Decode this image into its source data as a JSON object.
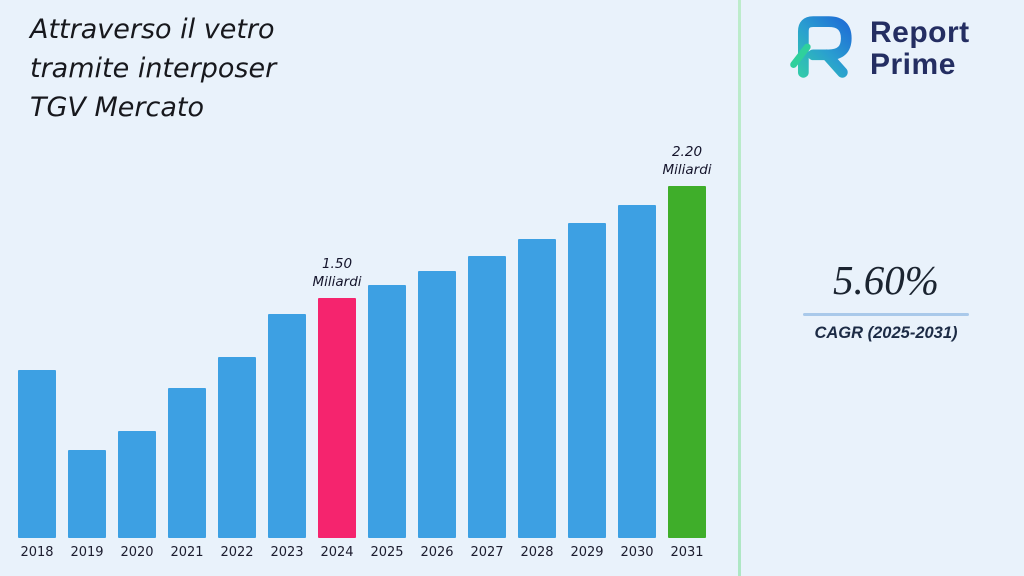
{
  "page": {
    "background_color": "#e9f2fb",
    "divider_color": "#b9ecca"
  },
  "title": {
    "lines": [
      "Attraverso il vetro",
      "tramite interposer",
      "TGV Mercato"
    ]
  },
  "brand": {
    "line1": "Report",
    "line2": "Prime",
    "icon": "report-prime-logo-mark",
    "text_color": "#242e62",
    "gradient_start": "#35d89f",
    "gradient_end": "#1e6bd6"
  },
  "stats": {
    "value": "5.60%",
    "label": "CAGR (2025-2031)",
    "underline_color": "#a9c9ea"
  },
  "chart_data": {
    "type": "bar",
    "title": "Attraverso il vetro tramite interposer TGV Mercato",
    "unit": "Miliardi",
    "categories": [
      "2018",
      "2019",
      "2020",
      "2021",
      "2022",
      "2023",
      "2024",
      "2025",
      "2026",
      "2027",
      "2028",
      "2029",
      "2030",
      "2031"
    ],
    "values": [
      1.05,
      0.55,
      0.67,
      0.94,
      1.13,
      1.4,
      1.5,
      1.58,
      1.67,
      1.76,
      1.87,
      1.97,
      2.08,
      2.2
    ],
    "ylim": [
      0,
      2.4
    ],
    "grid": false,
    "legend": false,
    "default_bar_color": "#3da0e3",
    "bar_color_overrides": {
      "2024": "#f5246e",
      "2031": "#3fae2a"
    },
    "annotations": [
      {
        "category": "2024",
        "lines": [
          "1.50",
          "Miliardi"
        ]
      },
      {
        "category": "2031",
        "lines": [
          "2.20",
          "Miliardi"
        ]
      }
    ]
  }
}
